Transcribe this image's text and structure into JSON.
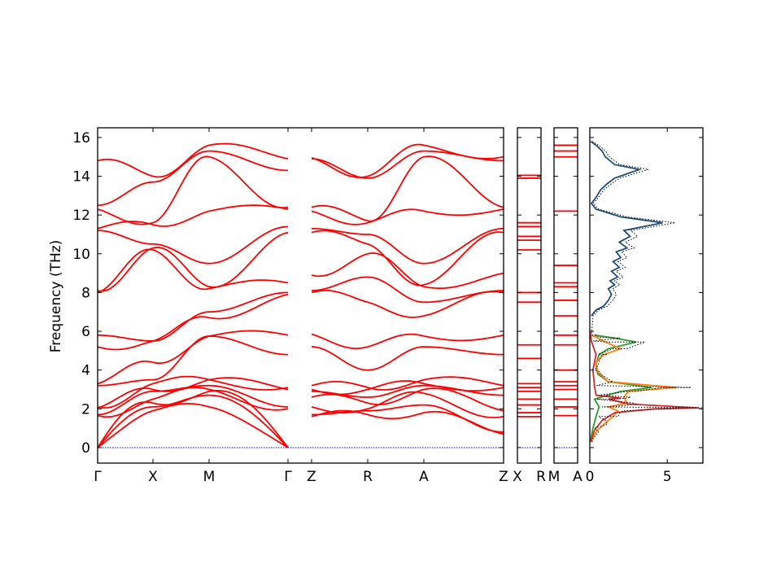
{
  "chart_data": {
    "type": "line",
    "ylabel": "Frequency (THz)",
    "ylim": [
      -0.8,
      16.5
    ],
    "yticks": [
      0,
      2,
      4,
      6,
      8,
      10,
      12,
      14,
      16
    ],
    "band_color": "#ff0000",
    "zero_line_color": "#0000ff",
    "band_panels": [
      {
        "id": "main",
        "ticks": [
          "Γ",
          "X",
          "M",
          "Γ",
          "Z",
          "R",
          "A",
          "Z"
        ]
      },
      {
        "id": "x-r",
        "ticks": [
          "X",
          "R"
        ]
      },
      {
        "id": "m-a",
        "ticks": [
          "M",
          "A"
        ]
      }
    ],
    "main_segments": [
      {
        "from": "Γ",
        "to": "X",
        "start": [
          0,
          0,
          0,
          1.65,
          1.7,
          2.05,
          2.1,
          3.2,
          3.3,
          5.2,
          5.8,
          8.0,
          8.1,
          11.2,
          11.3,
          12.3,
          12.5,
          14.8
        ],
        "end": [
          1.9,
          2.1,
          2.3,
          2.5,
          2.9,
          3.0,
          3.3,
          3.5,
          4.4,
          5.5,
          5.5,
          10.2,
          10.3,
          10.5,
          11.5,
          11.6,
          13.7,
          14.0
        ]
      },
      {
        "from": "X",
        "to": "M",
        "start": [
          1.9,
          2.1,
          2.3,
          2.5,
          2.9,
          3.0,
          3.3,
          3.5,
          4.4,
          5.5,
          5.5,
          10.2,
          10.3,
          10.5,
          11.5,
          11.6,
          13.7,
          14.0
        ],
        "end": [
          2.1,
          2.7,
          2.9,
          3.0,
          3.2,
          3.5,
          3.5,
          5.75,
          5.75,
          6.7,
          7.0,
          8.2,
          8.3,
          9.5,
          12.2,
          15.0,
          15.3,
          15.6
        ]
      },
      {
        "from": "M",
        "to": "Γ",
        "start": [
          2.1,
          2.7,
          2.9,
          3.0,
          3.2,
          3.5,
          3.5,
          5.75,
          5.75,
          6.7,
          7.0,
          8.2,
          8.3,
          9.5,
          12.2,
          15.0,
          15.3,
          15.6
        ],
        "end": [
          0,
          0,
          0,
          2.0,
          2.1,
          3.0,
          3.1,
          4.8,
          5.8,
          7.9,
          8.0,
          8.5,
          11.1,
          11.4,
          12.3,
          12.4,
          14.3,
          14.9
        ]
      },
      {
        "from": "Z",
        "to": "R",
        "start": [
          1.6,
          1.7,
          2.1,
          2.6,
          2.9,
          3.0,
          3.2,
          5.2,
          5.85,
          8.0,
          8.1,
          8.9,
          11.1,
          11.3,
          12.2,
          12.4,
          14.9,
          14.95
        ],
        "end": [
          1.7,
          1.9,
          2.0,
          2.3,
          2.6,
          3.0,
          3.1,
          4.0,
          5.2,
          7.5,
          8.8,
          10.0,
          10.5,
          11.0,
          11.6,
          11.7,
          13.9,
          14.0
        ]
      },
      {
        "from": "R",
        "to": "A",
        "start": [
          1.7,
          1.9,
          2.0,
          2.3,
          2.6,
          3.0,
          3.1,
          4.0,
          5.2,
          7.5,
          8.8,
          10.0,
          10.5,
          11.0,
          11.6,
          11.7,
          13.9,
          14.0
        ],
        "end": [
          1.8,
          2.2,
          2.8,
          3.0,
          3.2,
          3.3,
          3.5,
          5.2,
          5.75,
          6.8,
          7.5,
          8.3,
          8.4,
          9.5,
          12.2,
          15.0,
          15.3,
          15.6
        ]
      },
      {
        "from": "A",
        "to": "Z",
        "start": [
          1.8,
          2.2,
          2.8,
          3.0,
          3.2,
          3.3,
          3.5,
          5.2,
          5.75,
          6.8,
          7.5,
          8.3,
          8.4,
          9.5,
          12.2,
          15.0,
          15.3,
          15.6
        ],
        "end": [
          0.7,
          0.8,
          1.6,
          1.9,
          2.7,
          3.1,
          3.2,
          4.8,
          5.8,
          8.0,
          8.1,
          9.0,
          11.1,
          11.3,
          12.3,
          12.4,
          14.8,
          15.0
        ]
      }
    ],
    "x_r_levels": [
      1.6,
      1.8,
      2.2,
      2.5,
      2.9,
      3.1,
      3.3,
      4.6,
      5.3,
      7.5,
      8.0,
      10.2,
      10.7,
      10.9,
      11.4,
      11.6,
      13.9,
      14.05
    ],
    "m_a_levels": [
      1.65,
      2.1,
      2.5,
      3.0,
      3.2,
      3.4,
      4.0,
      5.3,
      5.8,
      6.8,
      7.6,
      8.3,
      8.5,
      9.4,
      12.2,
      15.0,
      15.3,
      15.6
    ],
    "dos": {
      "xlim": [
        0,
        7.3
      ],
      "xticks": [
        0,
        5
      ],
      "series": [
        {
          "color": "#1f4e79",
          "points": [
            [
              0.1,
              6.8
            ],
            [
              0.4,
              7.1
            ],
            [
              0.9,
              7.3
            ],
            [
              1.2,
              7.6
            ],
            [
              1.4,
              7.9
            ],
            [
              1.2,
              8.2
            ],
            [
              1.6,
              8.4
            ],
            [
              1.3,
              8.6
            ],
            [
              1.8,
              8.8
            ],
            [
              1.4,
              9.1
            ],
            [
              1.9,
              9.3
            ],
            [
              1.5,
              9.6
            ],
            [
              2.0,
              9.8
            ],
            [
              1.7,
              10.1
            ],
            [
              2.4,
              10.3
            ],
            [
              1.9,
              10.6
            ],
            [
              2.6,
              10.9
            ],
            [
              2.2,
              11.2
            ],
            [
              4.7,
              11.6
            ],
            [
              2.0,
              11.9
            ],
            [
              0.4,
              12.3
            ],
            [
              0.1,
              12.6
            ],
            [
              0.4,
              12.9
            ],
            [
              0.7,
              13.3
            ],
            [
              1.1,
              13.6
            ],
            [
              1.6,
              13.9
            ],
            [
              3.2,
              14.35
            ],
            [
              1.6,
              14.6
            ],
            [
              1.0,
              15.0
            ],
            [
              0.8,
              15.3
            ],
            [
              0.4,
              15.6
            ],
            [
              0.05,
              15.8
            ]
          ]
        },
        {
          "color": "#2ca02c",
          "points": [
            [
              0.05,
              0.4
            ],
            [
              0.2,
              1.0
            ],
            [
              0.4,
              1.6
            ],
            [
              0.6,
              2.1
            ],
            [
              0.3,
              2.5
            ],
            [
              2.0,
              2.9
            ],
            [
              4.0,
              3.1
            ],
            [
              1.2,
              3.4
            ],
            [
              0.5,
              3.8
            ],
            [
              0.4,
              4.3
            ],
            [
              0.6,
              4.8
            ],
            [
              1.2,
              5.1
            ],
            [
              3.0,
              5.45
            ],
            [
              1.6,
              5.65
            ],
            [
              0.3,
              5.8
            ]
          ]
        },
        {
          "color": "#ff7f0e",
          "points": [
            [
              0.05,
              0.3
            ],
            [
              0.4,
              0.8
            ],
            [
              0.9,
              1.2
            ],
            [
              1.5,
              1.6
            ],
            [
              1.8,
              1.9
            ],
            [
              1.2,
              2.1
            ],
            [
              2.4,
              2.3
            ],
            [
              2.2,
              2.6
            ],
            [
              2.5,
              2.9
            ],
            [
              5.6,
              3.1
            ],
            [
              1.2,
              3.4
            ],
            [
              0.5,
              3.9
            ],
            [
              0.4,
              4.4
            ],
            [
              0.9,
              4.8
            ],
            [
              2.0,
              5.1
            ],
            [
              1.0,
              5.45
            ],
            [
              0.4,
              5.7
            ],
            [
              0.05,
              5.8
            ]
          ]
        },
        {
          "color": "#d62728",
          "points": [
            [
              0.05,
              0.3
            ],
            [
              0.3,
              0.9
            ],
            [
              0.8,
              1.4
            ],
            [
              1.6,
              1.8
            ],
            [
              4.2,
              2.0
            ],
            [
              7.0,
              2.05
            ],
            [
              2.5,
              2.25
            ],
            [
              1.2,
              2.5
            ],
            [
              2.0,
              2.55
            ],
            [
              0.4,
              2.7
            ],
            [
              0.3,
              3.2
            ],
            [
              0.2,
              4.0
            ],
            [
              0.4,
              4.8
            ],
            [
              0.1,
              5.5
            ],
            [
              0.02,
              6.0
            ]
          ]
        }
      ],
      "total_dotted_color": "#000000"
    }
  }
}
